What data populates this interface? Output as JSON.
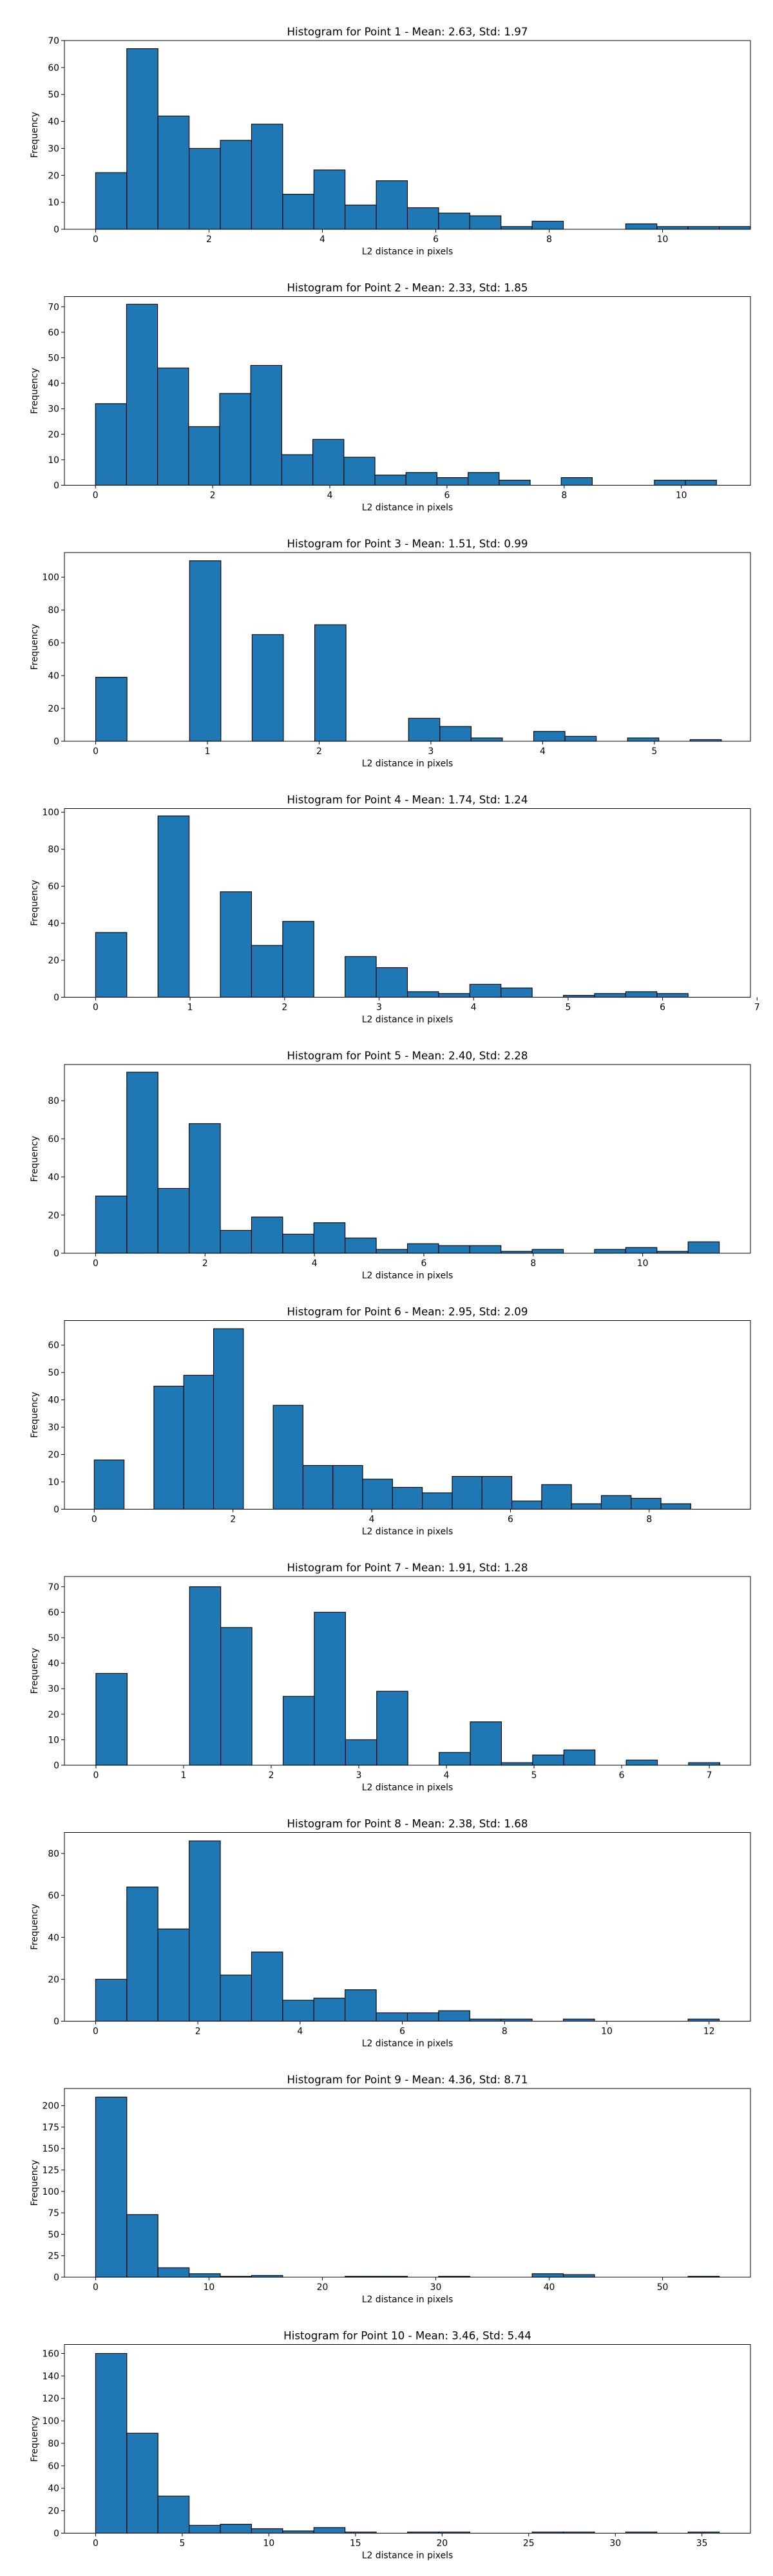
{
  "chart_data": [
    {
      "type": "bar",
      "title": "Histogram for Point 1 - Mean: 2.63, Std: 1.97",
      "xlabel": "L2 distance in pixels",
      "ylabel": "Frequency",
      "x_range": [
        -0.55,
        11.55
      ],
      "ylim": [
        0,
        70
      ],
      "xticks": [
        0,
        2,
        4,
        6,
        8,
        10
      ],
      "yticks": [
        0,
        10,
        20,
        30,
        40,
        50,
        60,
        70
      ],
      "bin_start": 0,
      "bin_width": 0.55,
      "values": [
        21,
        67,
        42,
        30,
        33,
        39,
        13,
        22,
        9,
        18,
        8,
        6,
        5,
        1,
        3,
        0,
        0,
        2,
        1,
        1,
        1
      ]
    },
    {
      "type": "bar",
      "title": "Histogram for Point 2 - Mean: 2.33, Std: 1.85",
      "xlabel": "L2 distance in pixels",
      "ylabel": "Frequency",
      "x_range": [
        -0.53,
        11.18
      ],
      "ylim": [
        0,
        74
      ],
      "xticks": [
        0,
        2,
        4,
        6,
        8,
        10
      ],
      "yticks": [
        0,
        10,
        20,
        30,
        40,
        50,
        60,
        70
      ],
      "bin_start": 0,
      "bin_width": 0.53,
      "values": [
        32,
        71,
        46,
        23,
        36,
        47,
        12,
        18,
        11,
        4,
        5,
        3,
        5,
        2,
        0,
        3,
        0,
        0,
        2,
        2
      ]
    },
    {
      "type": "bar",
      "title": "Histogram for Point 3 - Mean: 1.51, Std: 0.99",
      "xlabel": "L2 distance in pixels",
      "ylabel": "Frequency",
      "x_range": [
        -0.28,
        5.86
      ],
      "ylim": [
        0,
        115
      ],
      "xticks": [
        0,
        1,
        2,
        3,
        4,
        5
      ],
      "yticks": [
        0,
        20,
        40,
        60,
        80,
        100
      ],
      "bin_start": 0,
      "bin_width": 0.28,
      "values": [
        39,
        0,
        0,
        110,
        0,
        65,
        0,
        71,
        0,
        0,
        14,
        9,
        2,
        0,
        6,
        3,
        0,
        2,
        0,
        1
      ]
    },
    {
      "type": "bar",
      "title": "Histogram for Point 4 - Mean: 1.74, Std: 1.24",
      "xlabel": "L2 distance in pixels",
      "ylabel": "Frequency",
      "x_range": [
        -0.33,
        6.93
      ],
      "ylim": [
        0,
        102
      ],
      "xticks": [
        0,
        1,
        2,
        3,
        4,
        5,
        6,
        7
      ],
      "yticks": [
        0,
        20,
        40,
        60,
        80,
        100
      ],
      "bin_start": 0,
      "bin_width": 0.33,
      "values": [
        35,
        0,
        98,
        0,
        57,
        28,
        41,
        0,
        22,
        16,
        3,
        2,
        7,
        5,
        0,
        1,
        2,
        3,
        2
      ]
    },
    {
      "type": "bar",
      "title": "Histogram for Point 5 - Mean: 2.40, Std: 2.28",
      "xlabel": "L2 distance in pixels",
      "ylabel": "Frequency",
      "x_range": [
        -0.57,
        11.97
      ],
      "ylim": [
        0,
        99
      ],
      "xticks": [
        0,
        2,
        4,
        6,
        8,
        10
      ],
      "yticks": [
        0,
        20,
        40,
        60,
        80
      ],
      "bin_start": 0,
      "bin_width": 0.57,
      "values": [
        30,
        95,
        34,
        68,
        12,
        19,
        10,
        16,
        8,
        2,
        5,
        4,
        4,
        1,
        2,
        0,
        2,
        3,
        1,
        6
      ]
    },
    {
      "type": "bar",
      "title": "Histogram for Point 6 - Mean: 2.95, Std: 2.09",
      "xlabel": "L2 distance in pixels",
      "ylabel": "Frequency",
      "x_range": [
        -0.43,
        9.46
      ],
      "ylim": [
        0,
        69
      ],
      "xticks": [
        0,
        2,
        4,
        6,
        8
      ],
      "yticks": [
        0,
        10,
        20,
        30,
        40,
        50,
        60
      ],
      "bin_start": 0,
      "bin_width": 0.43,
      "values": [
        18,
        0,
        45,
        49,
        66,
        0,
        38,
        16,
        16,
        11,
        8,
        6,
        12,
        12,
        3,
        9,
        2,
        5,
        4,
        2
      ]
    },
    {
      "type": "bar",
      "title": "Histogram for Point 7 - Mean: 1.91, Std: 1.28",
      "xlabel": "L2 distance in pixels",
      "ylabel": "Frequency",
      "x_range": [
        -0.36,
        7.47
      ],
      "ylim": [
        0,
        74
      ],
      "xticks": [
        0,
        1,
        2,
        3,
        4,
        5,
        6,
        7
      ],
      "yticks": [
        0,
        10,
        20,
        30,
        40,
        50,
        60,
        70
      ],
      "bin_start": 0,
      "bin_width": 0.356,
      "values": [
        36,
        0,
        0,
        70,
        54,
        0,
        27,
        60,
        10,
        29,
        0,
        5,
        17,
        1,
        4,
        6,
        0,
        2,
        0,
        1
      ]
    },
    {
      "type": "bar",
      "title": "Histogram for Point 8 - Mean: 2.38, Std: 1.68",
      "xlabel": "L2 distance in pixels",
      "ylabel": "Frequency",
      "x_range": [
        -0.61,
        12.81
      ],
      "ylim": [
        0,
        90
      ],
      "xticks": [
        0,
        2,
        4,
        6,
        8,
        10,
        12
      ],
      "yticks": [
        0,
        20,
        40,
        60,
        80
      ],
      "bin_start": 0,
      "bin_width": 0.61,
      "values": [
        20,
        64,
        44,
        86,
        22,
        33,
        10,
        11,
        15,
        4,
        4,
        5,
        1,
        1,
        0,
        1,
        0,
        0,
        0,
        1
      ]
    },
    {
      "type": "bar",
      "title": "Histogram for Point 9 - Mean: 4.36, Std: 8.71",
      "xlabel": "L2 distance in pixels",
      "ylabel": "Frequency",
      "x_range": [
        -2.75,
        57.75
      ],
      "ylim": [
        0,
        220
      ],
      "xticks": [
        0,
        10,
        20,
        30,
        40,
        50
      ],
      "yticks": [
        0,
        25,
        50,
        75,
        100,
        125,
        150,
        175,
        200
      ],
      "bin_start": 0,
      "bin_width": 2.75,
      "values": [
        210,
        73,
        11,
        4,
        1,
        2,
        0,
        0,
        1,
        1,
        0,
        1,
        0,
        0,
        4,
        3,
        0,
        0,
        0,
        1
      ]
    },
    {
      "type": "bar",
      "title": "Histogram for Point 10 - Mean: 3.46, Std: 5.44",
      "xlabel": "L2 distance in pixels",
      "ylabel": "Frequency",
      "x_range": [
        -1.8,
        37.8
      ],
      "ylim": [
        0,
        168
      ],
      "xticks": [
        0,
        5,
        10,
        15,
        20,
        25,
        30,
        35
      ],
      "yticks": [
        0,
        20,
        40,
        60,
        80,
        100,
        120,
        140,
        160
      ],
      "bin_start": 0,
      "bin_width": 1.8,
      "values": [
        160,
        89,
        33,
        7,
        8,
        4,
        2,
        5,
        1,
        0,
        1,
        1,
        0,
        0,
        1,
        1,
        0,
        1,
        0,
        1
      ]
    }
  ]
}
